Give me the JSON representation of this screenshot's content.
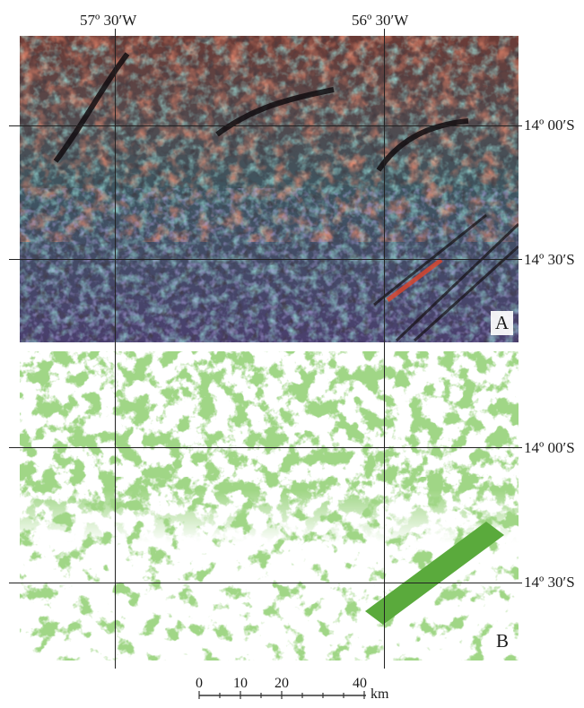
{
  "longitude_labels": [
    "57º 30′W",
    "56º 30′W"
  ],
  "latitude_labels": [
    "14º 00′S",
    "14º 30′S"
  ],
  "panels": [
    {
      "letter": "A",
      "description_colors": [
        "#e8452a",
        "#7fd6c8",
        "#1a1414",
        "#5b4d9a",
        "#b7506a"
      ]
    },
    {
      "letter": "B",
      "fill_color": "#5aaa3c"
    }
  ],
  "scale_bar": {
    "ticks": [
      "0",
      "10",
      "20",
      "40"
    ],
    "unit": "km"
  }
}
